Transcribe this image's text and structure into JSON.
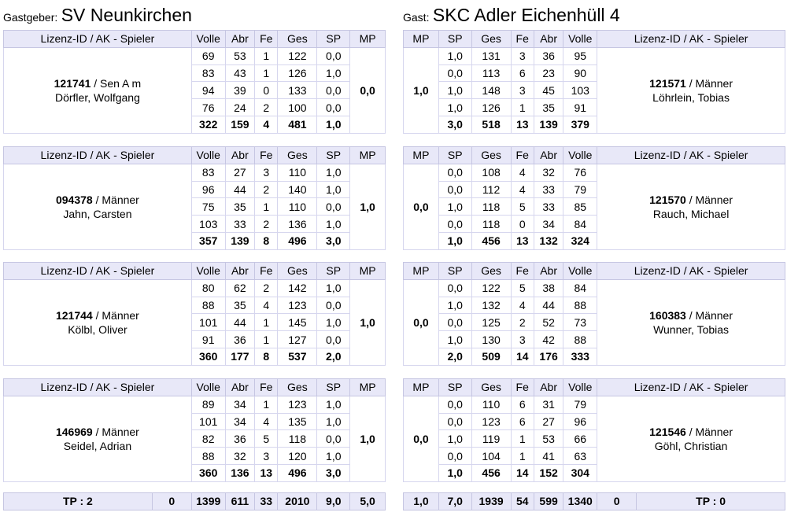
{
  "home": {
    "prefix": "Gastgeber:",
    "team": "SV Neunkirchen"
  },
  "guest": {
    "prefix": "Gast:",
    "team": "SKC Adler Eichenhüll 4"
  },
  "labels": {
    "home_columns": [
      "Lizenz-ID / AK - Spieler",
      "Volle",
      "Abr",
      "Fe",
      "Ges",
      "SP",
      "MP"
    ],
    "guest_columns": [
      "MP",
      "SP",
      "Ges",
      "Fe",
      "Abr",
      "Volle",
      "Lizenz-ID / AK - Spieler"
    ]
  },
  "matches": [
    {
      "home": {
        "id": "121741",
        "ak": " / Sen A m",
        "name": "Dörfler, Wolfgang",
        "mp": "0,0",
        "rows": [
          [
            "69",
            "53",
            "1",
            "122",
            "0,0"
          ],
          [
            "83",
            "43",
            "1",
            "126",
            "1,0"
          ],
          [
            "94",
            "39",
            "0",
            "133",
            "0,0"
          ],
          [
            "76",
            "24",
            "2",
            "100",
            "0,0"
          ]
        ],
        "total": [
          "322",
          "159",
          "4",
          "481",
          "1,0"
        ]
      },
      "guest": {
        "id": "121571",
        "ak": " / Männer",
        "name": "Löhrlein, Tobias",
        "mp": "1,0",
        "rows": [
          [
            "1,0",
            "131",
            "3",
            "36",
            "95"
          ],
          [
            "0,0",
            "113",
            "6",
            "23",
            "90"
          ],
          [
            "1,0",
            "148",
            "3",
            "45",
            "103"
          ],
          [
            "1,0",
            "126",
            "1",
            "35",
            "91"
          ]
        ],
        "total": [
          "3,0",
          "518",
          "13",
          "139",
          "379"
        ]
      }
    },
    {
      "home": {
        "id": "094378",
        "ak": " / Männer",
        "name": "Jahn, Carsten",
        "mp": "1,0",
        "rows": [
          [
            "83",
            "27",
            "3",
            "110",
            "1,0"
          ],
          [
            "96",
            "44",
            "2",
            "140",
            "1,0"
          ],
          [
            "75",
            "35",
            "1",
            "110",
            "0,0"
          ],
          [
            "103",
            "33",
            "2",
            "136",
            "1,0"
          ]
        ],
        "total": [
          "357",
          "139",
          "8",
          "496",
          "3,0"
        ]
      },
      "guest": {
        "id": "121570",
        "ak": " / Männer",
        "name": "Rauch, Michael",
        "mp": "0,0",
        "rows": [
          [
            "0,0",
            "108",
            "4",
            "32",
            "76"
          ],
          [
            "0,0",
            "112",
            "4",
            "33",
            "79"
          ],
          [
            "1,0",
            "118",
            "5",
            "33",
            "85"
          ],
          [
            "0,0",
            "118",
            "0",
            "34",
            "84"
          ]
        ],
        "total": [
          "1,0",
          "456",
          "13",
          "132",
          "324"
        ]
      }
    },
    {
      "home": {
        "id": "121744",
        "ak": " / Männer",
        "name": "Kölbl, Oliver",
        "mp": "1,0",
        "rows": [
          [
            "80",
            "62",
            "2",
            "142",
            "1,0"
          ],
          [
            "88",
            "35",
            "4",
            "123",
            "0,0"
          ],
          [
            "101",
            "44",
            "1",
            "145",
            "1,0"
          ],
          [
            "91",
            "36",
            "1",
            "127",
            "0,0"
          ]
        ],
        "total": [
          "360",
          "177",
          "8",
          "537",
          "2,0"
        ]
      },
      "guest": {
        "id": "160383",
        "ak": " / Männer",
        "name": "Wunner, Tobias",
        "mp": "0,0",
        "rows": [
          [
            "0,0",
            "122",
            "5",
            "38",
            "84"
          ],
          [
            "1,0",
            "132",
            "4",
            "44",
            "88"
          ],
          [
            "0,0",
            "125",
            "2",
            "52",
            "73"
          ],
          [
            "1,0",
            "130",
            "3",
            "42",
            "88"
          ]
        ],
        "total": [
          "2,0",
          "509",
          "14",
          "176",
          "333"
        ]
      }
    },
    {
      "home": {
        "id": "146969",
        "ak": " / Männer",
        "name": "Seidel, Adrian",
        "mp": "1,0",
        "rows": [
          [
            "89",
            "34",
            "1",
            "123",
            "1,0"
          ],
          [
            "101",
            "34",
            "4",
            "135",
            "1,0"
          ],
          [
            "82",
            "36",
            "5",
            "118",
            "0,0"
          ],
          [
            "88",
            "32",
            "3",
            "120",
            "1,0"
          ]
        ],
        "total": [
          "360",
          "136",
          "13",
          "496",
          "3,0"
        ]
      },
      "guest": {
        "id": "121546",
        "ak": " / Männer",
        "name": "Göhl, Christian",
        "mp": "0,0",
        "rows": [
          [
            "0,0",
            "110",
            "6",
            "31",
            "79"
          ],
          [
            "0,0",
            "123",
            "6",
            "27",
            "96"
          ],
          [
            "1,0",
            "119",
            "1",
            "53",
            "66"
          ],
          [
            "0,0",
            "104",
            "1",
            "41",
            "63"
          ]
        ],
        "total": [
          "1,0",
          "456",
          "14",
          "152",
          "304"
        ]
      }
    }
  ],
  "totals": {
    "home": {
      "tp": "TP : 2",
      "extra": "0",
      "volle": "1399",
      "abr": "611",
      "fe": "33",
      "ges": "2010",
      "sp": "9,0",
      "mp": "5,0"
    },
    "guest": {
      "mp": "1,0",
      "sp": "7,0",
      "ges": "1939",
      "fe": "54",
      "abr": "599",
      "volle": "1340",
      "extra": "0",
      "tp": "TP : 0"
    }
  }
}
